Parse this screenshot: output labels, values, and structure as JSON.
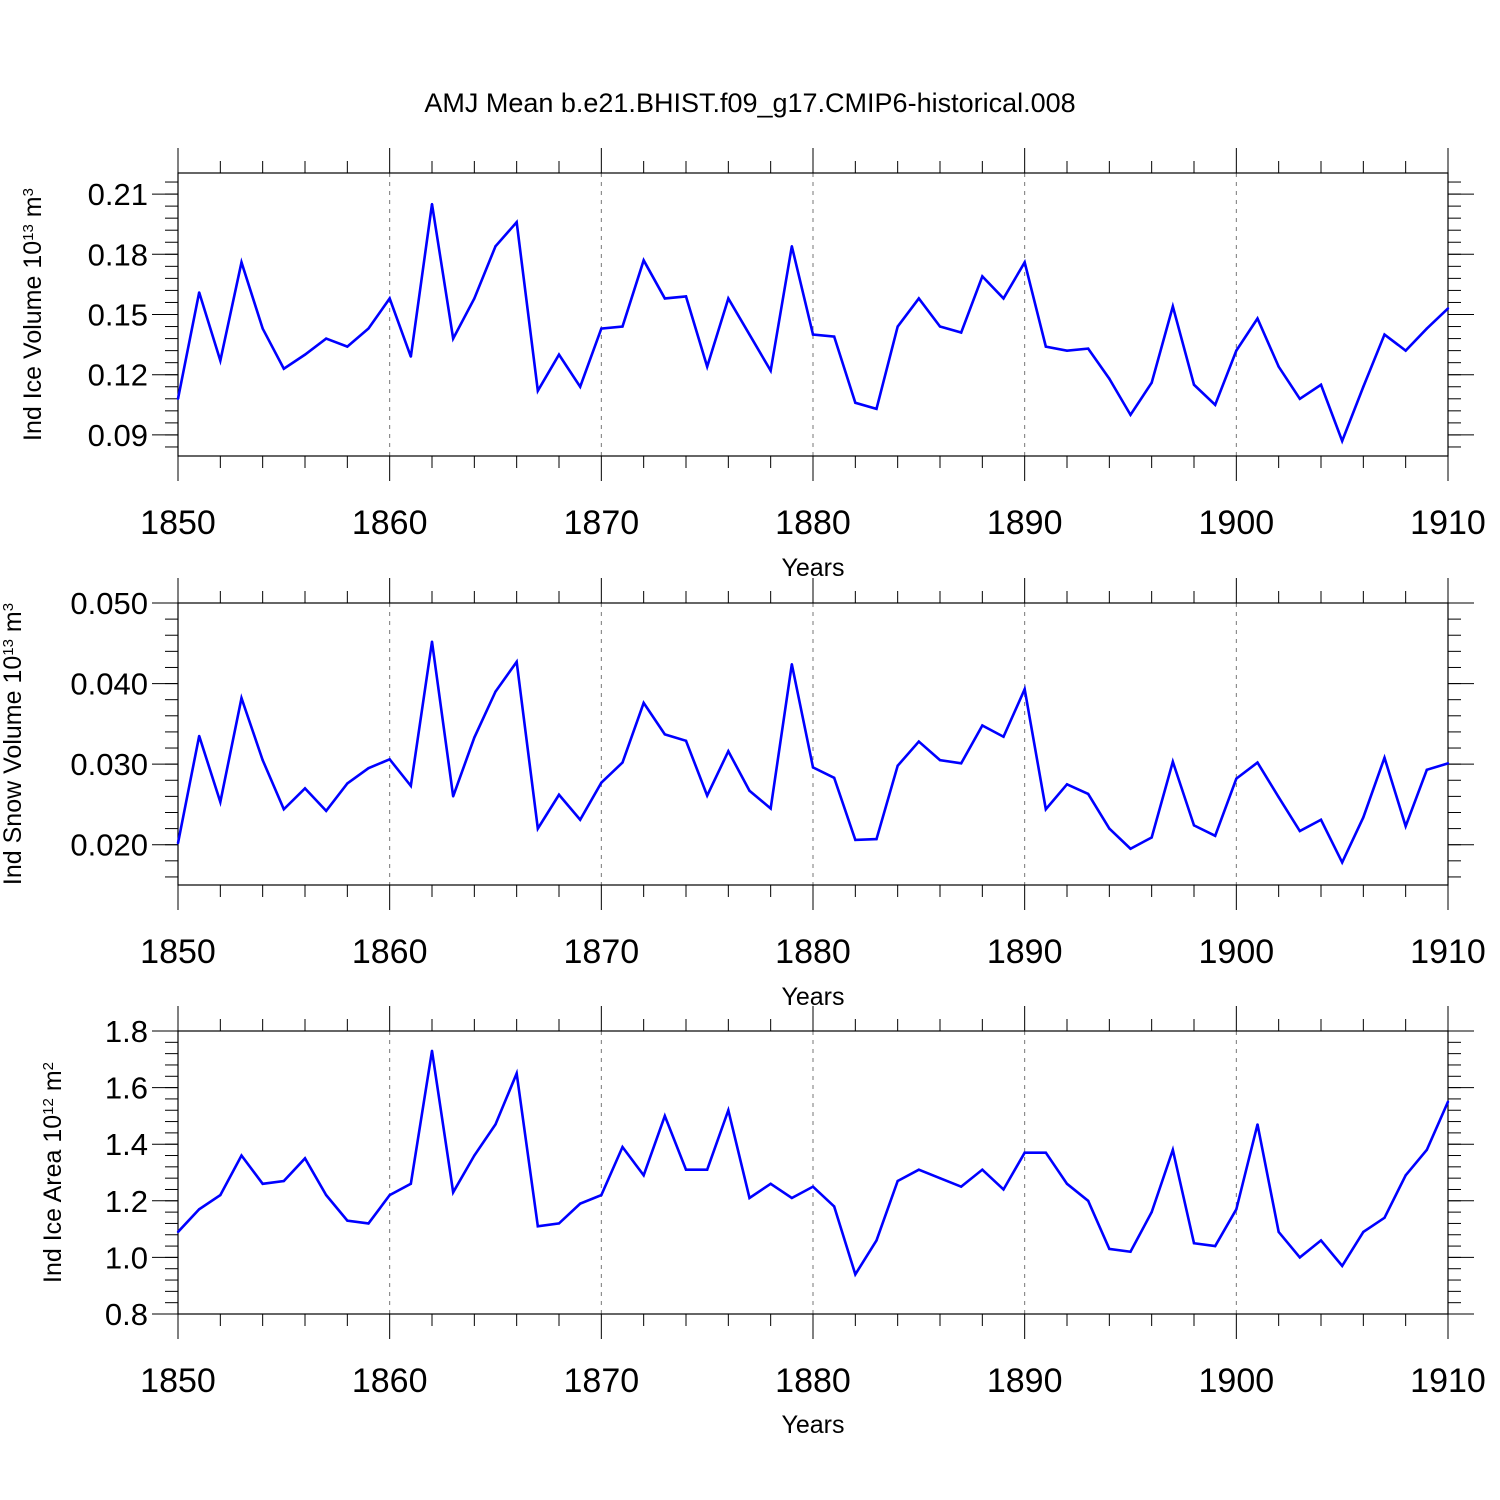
{
  "title": "AMJ Mean b.e21.BHIST.f09_g17.CMIP6-historical.008",
  "line_color": "#0000ff",
  "chart_data": [
    {
      "type": "line",
      "ylabel": {
        "prefix": "Ind Ice Volume 10",
        "exp": "13",
        "unit": " m",
        "unit_exp": "3"
      },
      "xlabel": "Years",
      "xlim": [
        1850,
        1910
      ],
      "ylim": [
        0.0795,
        0.2205
      ],
      "xticks": [
        1850,
        1860,
        1870,
        1880,
        1890,
        1900,
        1910
      ],
      "xtick_labels": [
        "1850",
        "1860",
        "1870",
        "1880",
        "1890",
        "1900",
        "1910"
      ],
      "yticks": [
        0.09,
        0.12,
        0.15,
        0.18,
        0.21
      ],
      "ytick_labels": [
        "0.09",
        "0.12",
        "0.15",
        "0.18",
        "0.21"
      ],
      "yminor_step": 0.006,
      "grid": "vertical dashed at major x ticks",
      "x_start": 1850,
      "values": [
        0.108,
        0.161,
        0.127,
        0.176,
        0.143,
        0.123,
        0.13,
        0.138,
        0.134,
        0.143,
        0.158,
        0.129,
        0.205,
        0.138,
        0.158,
        0.184,
        0.196,
        0.112,
        0.13,
        0.114,
        0.143,
        0.144,
        0.177,
        0.158,
        0.159,
        0.124,
        0.158,
        0.14,
        0.122,
        0.184,
        0.14,
        0.139,
        0.106,
        0.103,
        0.144,
        0.158,
        0.144,
        0.141,
        0.169,
        0.158,
        0.176,
        0.134,
        0.132,
        0.133,
        0.118,
        0.1,
        0.116,
        0.154,
        0.115,
        0.105,
        0.132,
        0.148,
        0.124,
        0.108,
        0.115,
        0.087,
        0.114,
        0.14,
        0.132,
        0.143,
        0.153
      ]
    },
    {
      "type": "line",
      "ylabel": {
        "prefix": "Ind Snow Volume 10",
        "exp": "13",
        "unit": " m",
        "unit_exp": "3"
      },
      "xlabel": "Years",
      "xlim": [
        1850,
        1910
      ],
      "ylim": [
        0.015,
        0.05
      ],
      "xticks": [
        1850,
        1860,
        1870,
        1880,
        1890,
        1900,
        1910
      ],
      "xtick_labels": [
        "1850",
        "1860",
        "1870",
        "1880",
        "1890",
        "1900",
        "1910"
      ],
      "yticks": [
        0.02,
        0.03,
        0.04,
        0.05
      ],
      "ytick_labels": [
        "0.020",
        "0.030",
        "0.040",
        "0.050"
      ],
      "yminor_step": 0.002,
      "grid": "vertical dashed at major x ticks",
      "x_start": 1850,
      "values": [
        0.0202,
        0.0335,
        0.0253,
        0.0382,
        0.0305,
        0.0244,
        0.027,
        0.0242,
        0.0276,
        0.0295,
        0.0306,
        0.0273,
        0.0452,
        0.026,
        0.0333,
        0.039,
        0.0427,
        0.022,
        0.0262,
        0.0231,
        0.0277,
        0.0302,
        0.0376,
        0.0337,
        0.0329,
        0.0261,
        0.0316,
        0.0267,
        0.0245,
        0.0424,
        0.0296,
        0.0283,
        0.0206,
        0.0207,
        0.0298,
        0.0328,
        0.0305,
        0.0301,
        0.0348,
        0.0334,
        0.0393,
        0.0244,
        0.0275,
        0.0263,
        0.022,
        0.0195,
        0.0209,
        0.0303,
        0.0224,
        0.0211,
        0.0282,
        0.0302,
        0.0259,
        0.0217,
        0.0231,
        0.0178,
        0.0234,
        0.0308,
        0.0223,
        0.0293,
        0.0301
      ]
    },
    {
      "type": "line",
      "ylabel": {
        "prefix": "Ind Ice Area 10",
        "exp": "12",
        "unit": " m",
        "unit_exp": "2"
      },
      "xlabel": "Years",
      "xlim": [
        1850,
        1910
      ],
      "ylim": [
        0.8,
        1.8
      ],
      "xticks": [
        1850,
        1860,
        1870,
        1880,
        1890,
        1900,
        1910
      ],
      "xtick_labels": [
        "1850",
        "1860",
        "1870",
        "1880",
        "1890",
        "1900",
        "1910"
      ],
      "yticks": [
        0.8,
        1.0,
        1.2,
        1.4,
        1.6,
        1.8
      ],
      "ytick_labels": [
        "0.8",
        "1.0",
        "1.2",
        "1.4",
        "1.6",
        "1.8"
      ],
      "yminor_step": 0.04,
      "grid": "vertical dashed at major x ticks",
      "x_start": 1850,
      "values": [
        1.09,
        1.17,
        1.22,
        1.36,
        1.26,
        1.27,
        1.35,
        1.22,
        1.13,
        1.12,
        1.22,
        1.26,
        1.73,
        1.23,
        1.36,
        1.47,
        1.65,
        1.11,
        1.12,
        1.19,
        1.22,
        1.39,
        1.29,
        1.5,
        1.31,
        1.31,
        1.52,
        1.21,
        1.26,
        1.21,
        1.25,
        1.18,
        0.94,
        1.06,
        1.27,
        1.31,
        1.28,
        1.25,
        1.31,
        1.24,
        1.37,
        1.37,
        1.26,
        1.2,
        1.03,
        1.02,
        1.16,
        1.38,
        1.05,
        1.04,
        1.17,
        1.47,
        1.09,
        1.0,
        1.06,
        0.97,
        1.09,
        1.14,
        1.29,
        1.38,
        1.55
      ]
    }
  ]
}
